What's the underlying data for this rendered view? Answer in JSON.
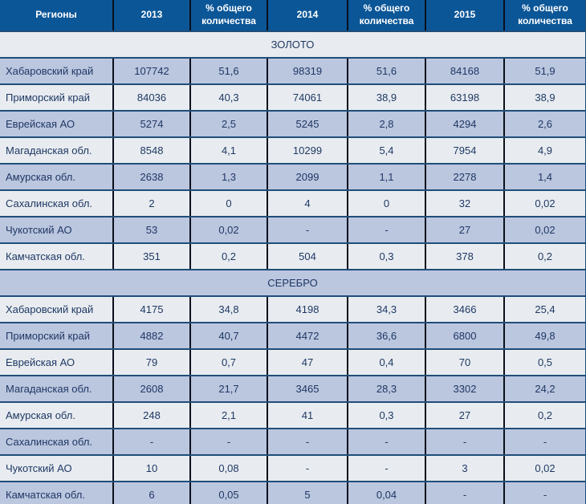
{
  "colors": {
    "header_bg": "#0b5697",
    "row_blue": "#bbc6df",
    "row_light": "#e8ecf0",
    "border_navy": "#1f4e79",
    "border_dark": "#09101c",
    "text": "#1f3864",
    "header_text": "#ffffff"
  },
  "chart_data": {
    "type": "table",
    "columns": [
      "Регионы",
      "2013",
      "% общего количества",
      "2014",
      "% общего количества",
      "2015",
      "% общего количества"
    ],
    "sections": [
      {
        "title": "ЗОЛОТО",
        "rows": [
          {
            "region": "Хабаровский край",
            "values": [
              "107742",
              "51,6",
              "98319",
              "51,6",
              "84168",
              "51,9"
            ]
          },
          {
            "region": "Приморский край",
            "values": [
              "84036",
              "40,3",
              "74061",
              "38,9",
              "63198",
              "38,9"
            ]
          },
          {
            "region": "Еврейская АО",
            "values": [
              "5274",
              "2,5",
              "5245",
              "2,8",
              "4294",
              "2,6"
            ]
          },
          {
            "region": "Магаданская обл.",
            "values": [
              "8548",
              "4,1",
              "10299",
              "5,4",
              "7954",
              "4,9"
            ]
          },
          {
            "region": "Амурская обл.",
            "values": [
              "2638",
              "1,3",
              "2099",
              "1,1",
              "2278",
              "1,4"
            ]
          },
          {
            "region": "Сахалинская обл.",
            "values": [
              "2",
              "0",
              "4",
              "0",
              "32",
              "0,02"
            ]
          },
          {
            "region": "Чукотский АО",
            "values": [
              "53",
              "0,02",
              "-",
              "-",
              "27",
              "0,02"
            ]
          },
          {
            "region": "Камчатская обл.",
            "values": [
              "351",
              "0,2",
              "504",
              "0,3",
              "378",
              "0,2"
            ]
          }
        ]
      },
      {
        "title": "СЕРЕБРО",
        "rows": [
          {
            "region": "Хабаровский край",
            "values": [
              "4175",
              "34,8",
              "4198",
              "34,3",
              "3466",
              "25,4"
            ]
          },
          {
            "region": "Приморский край",
            "values": [
              "4882",
              "40,7",
              "4472",
              "36,6",
              "6800",
              "49,8"
            ]
          },
          {
            "region": "Еврейская АО",
            "values": [
              "79",
              "0,7",
              "47",
              "0,4",
              "70",
              "0,5"
            ]
          },
          {
            "region": "Магаданская обл.",
            "values": [
              "2608",
              "21,7",
              "3465",
              "28,3",
              "3302",
              "24,2"
            ]
          },
          {
            "region": "Амурская обл.",
            "values": [
              "248",
              "2,1",
              "41",
              "0,3",
              "27",
              "0,2"
            ]
          },
          {
            "region": "Сахалинская обл.",
            "values": [
              "-",
              "-",
              "-",
              "-",
              "-",
              "-"
            ]
          },
          {
            "region": "Чукотский АО",
            "values": [
              "10",
              "0,08",
              "-",
              "-",
              "3",
              "0,02"
            ]
          },
          {
            "region": "Камчатская обл.",
            "values": [
              "6",
              "0,05",
              "5",
              "0,04",
              "-",
              "-"
            ]
          }
        ]
      }
    ]
  }
}
